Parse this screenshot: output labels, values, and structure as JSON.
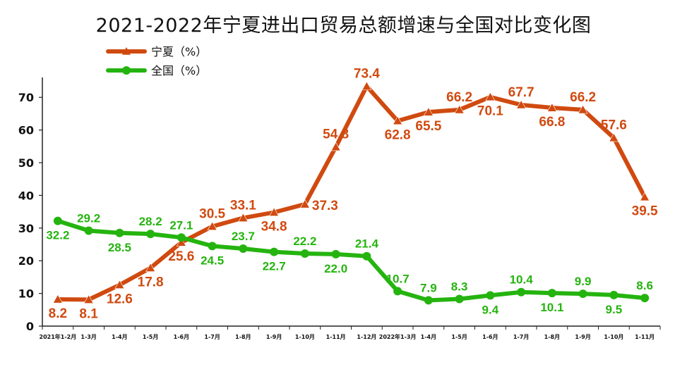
{
  "chart_data": {
    "type": "line",
    "title": "2021-2022年宁夏进出口贸易总额增速与全国对比变化图",
    "categories": [
      "2021年1-2月",
      "1-3月",
      "1-4月",
      "1-5月",
      "1-6月",
      "1-7月",
      "1-8月",
      "1-9月",
      "1-10月",
      "1-11月",
      "1-12月",
      "2022年1-3月",
      "1-4月",
      "1-5月",
      "1-6月",
      "1-7月",
      "1-8月",
      "1-9月",
      "1-10月",
      "1-11月"
    ],
    "yticks": [
      "0",
      "10",
      "20",
      "30",
      "40",
      "50",
      "60",
      "70"
    ],
    "ylim": [
      0,
      75
    ],
    "grid": false,
    "legend_position": "top-left",
    "series": [
      {
        "name": "宁夏（%）",
        "color": "#d04a10",
        "marker": "triangle",
        "values": [
          8.2,
          8.1,
          12.6,
          17.8,
          25.6,
          30.5,
          33.1,
          34.8,
          37.3,
          54.8,
          73.4,
          62.8,
          65.5,
          66.2,
          70.1,
          67.7,
          66.8,
          66.2,
          57.6,
          39.5
        ],
        "labels": [
          "8.2",
          "8.1",
          "12.6",
          "17.8",
          "25.6",
          "30.5",
          "33.1",
          "34.8",
          "37.3",
          "54.8",
          "73.4",
          "62.8",
          "65.5",
          "66.2",
          "70.1",
          "67.7",
          "66.8",
          "66.2",
          "57.6",
          "39.5"
        ]
      },
      {
        "name": "全国（%）",
        "color": "#25b40f",
        "marker": "circle",
        "values": [
          32.2,
          29.2,
          28.5,
          28.2,
          27.1,
          24.5,
          23.7,
          22.7,
          22.2,
          22.0,
          21.4,
          10.7,
          7.9,
          8.3,
          9.4,
          10.4,
          10.1,
          9.9,
          9.5,
          8.6
        ],
        "labels": [
          "32.2",
          "29.2",
          "28.5",
          "28.2",
          "27.1",
          "24.5",
          "23.7",
          "22.7",
          "22.2",
          "22.0",
          "21.4",
          "10.7",
          "7.9",
          "8.3",
          "9.4",
          "10.4",
          "10.1",
          "9.9",
          "9.5",
          "8.6"
        ]
      }
    ]
  }
}
